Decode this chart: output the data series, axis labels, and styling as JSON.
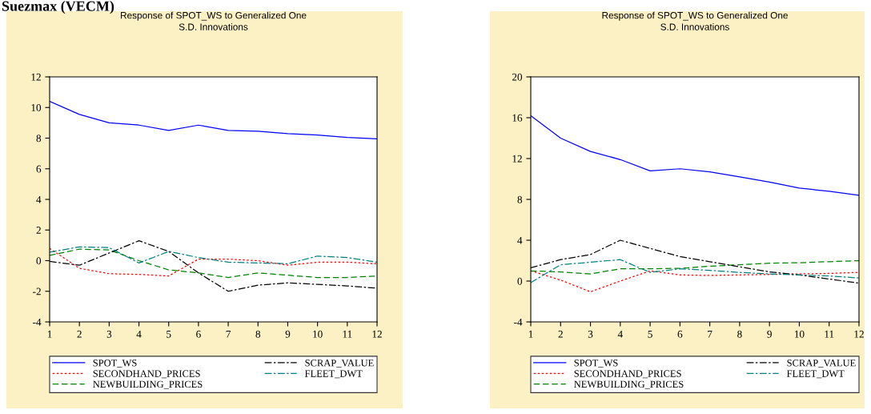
{
  "chart_data": [
    {
      "type": "line",
      "title": "Response of SPOT_WS to Generalized One\nS.D. Innovations",
      "annotations": [
        "Suezmax (VECM)"
      ],
      "x": [
        1,
        2,
        3,
        4,
        5,
        6,
        7,
        8,
        9,
        10,
        11,
        12
      ],
      "xlim": [
        1,
        12
      ],
      "xticks": [
        1,
        2,
        3,
        4,
        5,
        6,
        7,
        8,
        9,
        10,
        11,
        12
      ],
      "ylim": [
        -4,
        12
      ],
      "yticks": [
        -4,
        -2,
        0,
        2,
        4,
        6,
        8,
        10,
        12
      ],
      "grid": false,
      "legend": "bottom",
      "series": [
        {
          "name": "SPOT_WS",
          "color": "#0000ff",
          "line_style": "solid",
          "values": [
            10.4,
            9.55,
            9.0,
            8.85,
            8.5,
            8.85,
            8.5,
            8.45,
            8.3,
            8.2,
            8.05,
            7.95
          ]
        },
        {
          "name": "SECONDHAND_PRICES",
          "color": "#ff0000",
          "line_style": "dotted",
          "values": [
            0.8,
            -0.5,
            -0.85,
            -0.9,
            -1.0,
            0.1,
            0.1,
            0.0,
            -0.3,
            -0.1,
            -0.1,
            -0.2
          ]
        },
        {
          "name": "NEWBUILDING_PRICES",
          "color": "#008000",
          "line_style": "dashed",
          "values": [
            0.35,
            0.75,
            0.7,
            0.0,
            -0.6,
            -0.8,
            -1.1,
            -0.8,
            -0.95,
            -1.1,
            -1.1,
            -1.0
          ]
        },
        {
          "name": "SCRAP_VALUE",
          "color": "#000000",
          "line_style": "dashdot",
          "values": [
            -0.05,
            -0.3,
            0.5,
            1.3,
            0.6,
            -0.8,
            -2.0,
            -1.6,
            -1.45,
            -1.55,
            -1.65,
            -1.8
          ]
        },
        {
          "name": "FLEET_DWT",
          "color": "#008080",
          "line_style": "dashdot",
          "values": [
            0.55,
            0.9,
            0.85,
            -0.15,
            0.6,
            0.2,
            -0.1,
            -0.15,
            -0.2,
            0.3,
            0.2,
            -0.1
          ]
        }
      ]
    },
    {
      "type": "line",
      "title": "Response of SPOT_WS to Generalized One\nS.D. Innovations",
      "x": [
        1,
        2,
        3,
        4,
        5,
        6,
        7,
        8,
        9,
        10,
        11,
        12
      ],
      "xlim": [
        1,
        12
      ],
      "xticks": [
        1,
        2,
        3,
        4,
        5,
        6,
        7,
        8,
        9,
        10,
        11,
        12
      ],
      "ylim": [
        -4,
        20
      ],
      "yticks": [
        -4,
        0,
        4,
        8,
        12,
        16,
        20
      ],
      "grid": false,
      "legend": "bottom",
      "series": [
        {
          "name": "SPOT_WS",
          "color": "#0000ff",
          "line_style": "solid",
          "values": [
            16.2,
            14.0,
            12.7,
            11.9,
            10.8,
            11.0,
            10.7,
            10.2,
            9.7,
            9.1,
            8.8,
            8.4
          ]
        },
        {
          "name": "SECONDHAND_PRICES",
          "color": "#ff0000",
          "line_style": "dotted",
          "values": [
            1.0,
            0.1,
            -1.05,
            0.0,
            1.0,
            0.6,
            0.55,
            0.6,
            0.65,
            0.7,
            0.75,
            0.85
          ]
        },
        {
          "name": "NEWBUILDING_PRICES",
          "color": "#008000",
          "line_style": "dashed",
          "values": [
            1.0,
            0.9,
            0.7,
            1.2,
            1.2,
            1.25,
            1.45,
            1.6,
            1.75,
            1.8,
            1.9,
            2.0
          ]
        },
        {
          "name": "SCRAP_VALUE",
          "color": "#000000",
          "line_style": "dashdot",
          "values": [
            1.3,
            2.1,
            2.6,
            4.0,
            3.2,
            2.4,
            1.9,
            1.4,
            0.9,
            0.6,
            0.2,
            -0.2
          ]
        },
        {
          "name": "FLEET_DWT",
          "color": "#008080",
          "line_style": "dashdot",
          "values": [
            -0.15,
            1.6,
            1.85,
            2.1,
            0.85,
            1.2,
            1.05,
            0.85,
            0.7,
            0.6,
            0.5,
            0.3
          ]
        }
      ]
    }
  ]
}
